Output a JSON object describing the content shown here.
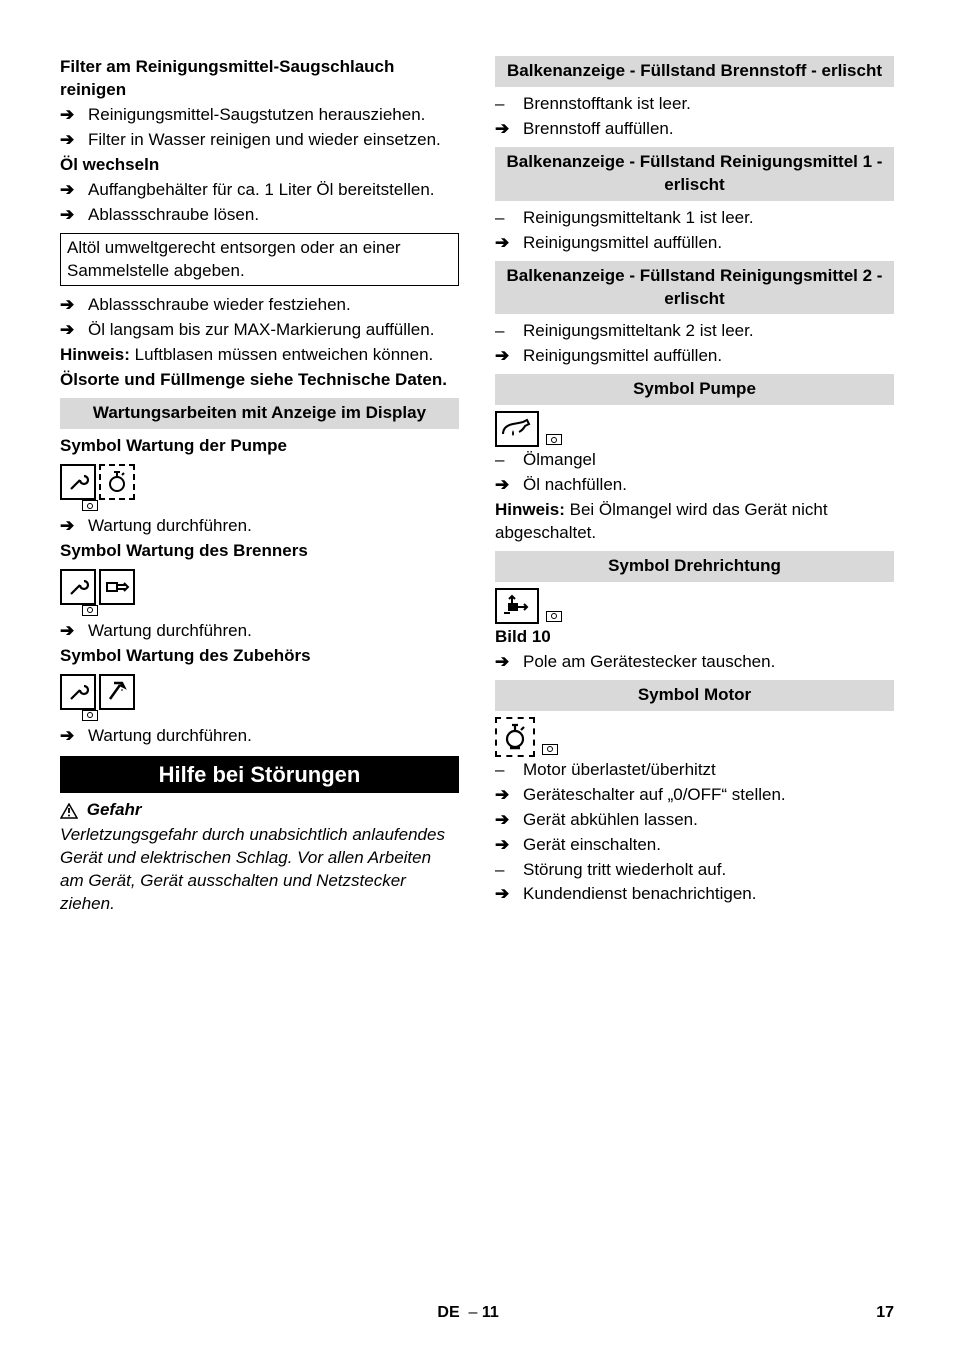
{
  "left": {
    "h_filter": "Filter am Reinigungsmittel-Saugschlauch reinigen",
    "filter_items": [
      "Reinigungsmittel-Saugstutzen herausziehen.",
      "Filter in Wasser reinigen und wieder einsetzen."
    ],
    "h_oil": "Öl wechseln",
    "oil_items_a": [
      "Auffangbehälter für ca. 1 Liter Öl bereitstellen.",
      "Ablassschraube lösen."
    ],
    "oil_box": "Altöl umweltgerecht entsorgen oder an einer Sammelstelle abgeben.",
    "oil_items_b": [
      "Ablassschraube wieder festziehen.",
      "Öl langsam bis zur MAX-Markierung auffüllen."
    ],
    "hinweis_label": "Hinweis: ",
    "hinweis_text": "Luftblasen müssen entweichen können.",
    "oil_note2": "Ölsorte und Füllmenge siehe Technische Daten.",
    "grey_wartung": "Wartungsarbeiten mit Anzeige im Display",
    "sym_pumpe": "Symbol Wartung der Pumpe",
    "wartung_do": "Wartung durchführen.",
    "sym_brenner": "Symbol Wartung des Brenners",
    "sym_zubehoer": "Symbol Wartung des Zubehörs",
    "black_hilfe": "Hilfe bei Störungen",
    "gefahr": "Gefahr",
    "gefahr_text": "Verletzungsgefahr durch unabsichtlich anlaufendes Gerät und elektrischen Schlag. Vor allen Arbeiten am Gerät, Gerät ausschalten und Netzstecker ziehen."
  },
  "right": {
    "grey1": "Balkenanzeige - Füllstand Brennstoff - erlischt",
    "g1_dash": "Brennstofftank ist leer.",
    "g1_arrow": "Brennstoff auffüllen.",
    "grey2": "Balkenanzeige - Füllstand Reinigungsmittel 1 - erlischt",
    "g2_dash": "Reinigungsmitteltank 1 ist leer.",
    "g2_arrow": "Reinigungsmittel auffüllen.",
    "grey3": "Balkenanzeige - Füllstand Reinigungsmittel 2 - erlischt",
    "g3_dash": "Reinigungsmitteltank 2 ist leer.",
    "g3_arrow": "Reinigungsmittel auffüllen.",
    "grey_pumpe": "Symbol Pumpe",
    "pumpe_dash": "Ölmangel",
    "pumpe_arrow": "Öl nachfüllen.",
    "hinweis_label": "Hinweis: ",
    "pumpe_hinweis": "Bei Ölmangel wird das Gerät nicht abgeschaltet.",
    "grey_dreh": "Symbol Drehrichtung",
    "bild10": "Bild 10",
    "dreh_arrow": "Pole am Gerätestecker tauschen.",
    "grey_motor": "Symbol Motor",
    "motor_items": [
      {
        "t": "dash",
        "v": "Motor überlastet/überhitzt"
      },
      {
        "t": "arrow",
        "v": "Geräteschalter auf „0/OFF“ stellen."
      },
      {
        "t": "arrow",
        "v": "Gerät abkühlen lassen."
      },
      {
        "t": "arrow",
        "v": "Gerät einschalten."
      },
      {
        "t": "dash",
        "v": "Störung tritt wiederholt auf."
      },
      {
        "t": "arrow",
        "v": "Kundendienst benachrichtigen."
      }
    ]
  },
  "footer": {
    "lang": "DE",
    "sep": "–",
    "page_inner": "11",
    "page_outer": "17"
  },
  "glyphs": {
    "arrow": "➔",
    "dash": "–"
  }
}
